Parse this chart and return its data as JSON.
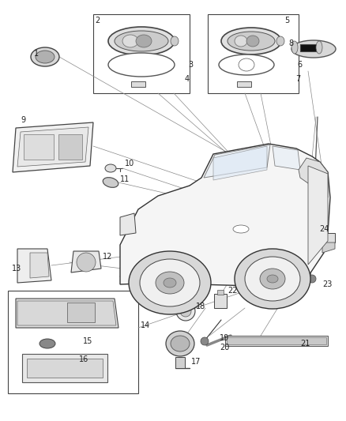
{
  "bg_color": "#ffffff",
  "fig_width": 4.38,
  "fig_height": 5.33,
  "dpi": 100,
  "line_color": "#444444",
  "label_fontsize": 7.0
}
